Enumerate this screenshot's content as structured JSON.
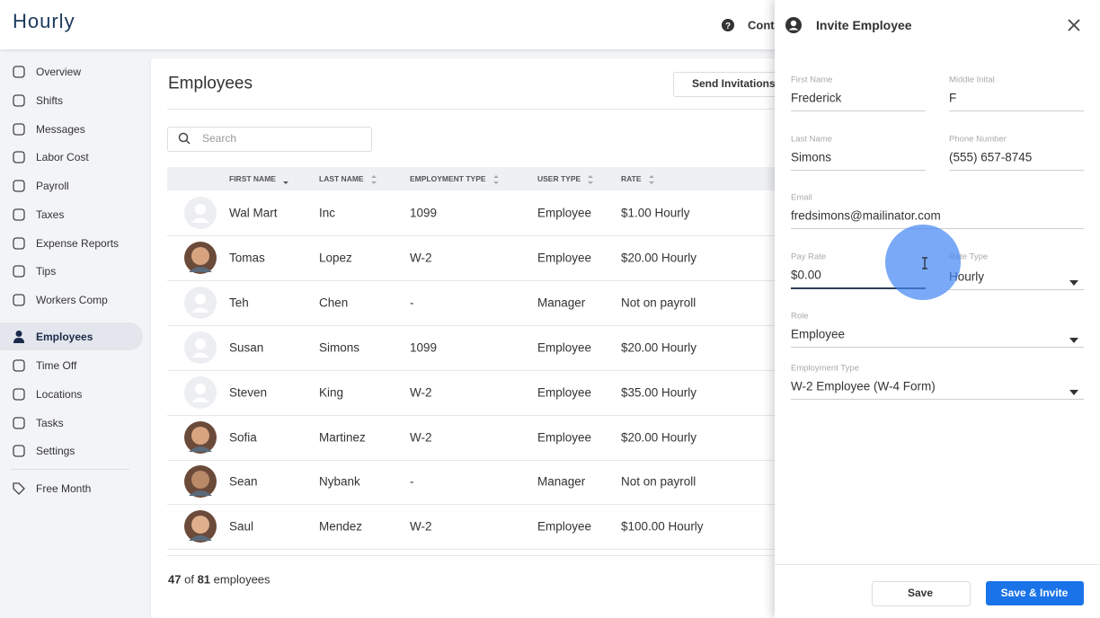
{
  "header": {
    "logo": "Hourly",
    "contact": "Conta"
  },
  "sidebar": {
    "active_index": 9,
    "items": [
      "Overview",
      "Shifts",
      "Messages",
      "Labor Cost",
      "Payroll",
      "Taxes",
      "Expense Reports",
      "Tips",
      "Workers Comp",
      "Employees",
      "Time Off",
      "Locations",
      "Tasks",
      "Settings"
    ],
    "extra": "Free Month"
  },
  "employees": {
    "title": "Employees",
    "send_button": "Send Invitations",
    "search_placeholder": "Search",
    "sorted_index": 0,
    "columns": [
      "FIRST NAME",
      "LAST NAME",
      "EMPLOYMENT TYPE",
      "USER TYPE",
      "RATE"
    ],
    "rows": [
      {
        "avatar": "default",
        "cells": [
          "Wal Mart",
          "Inc",
          "1099",
          "Employee",
          "$1.00 Hourly"
        ]
      },
      {
        "avatar": "photo",
        "cells": [
          "Tomas",
          "Lopez",
          "W-2",
          "Employee",
          "$20.00 Hourly"
        ]
      },
      {
        "avatar": "default",
        "cells": [
          "Teh",
          "Chen",
          "-",
          "Manager",
          "Not on payroll"
        ]
      },
      {
        "avatar": "default",
        "cells": [
          "Susan",
          "Simons",
          "1099",
          "Employee",
          "$20.00 Hourly"
        ]
      },
      {
        "avatar": "default",
        "cells": [
          "Steven",
          "King",
          "W-2",
          "Employee",
          "$35.00 Hourly"
        ]
      },
      {
        "avatar": "photo",
        "cells": [
          "Sofia",
          "Martinez",
          "W-2",
          "Employee",
          "$20.00 Hourly"
        ]
      },
      {
        "avatar": "photo",
        "cells": [
          "Sean",
          "Nybank",
          "-",
          "Manager",
          "Not on payroll"
        ]
      },
      {
        "avatar": "photo",
        "cells": [
          "Saul",
          "Mendez",
          "W-2",
          "Employee",
          "$100.00 Hourly"
        ]
      }
    ],
    "footer": {
      "shown": 47,
      "of": "of",
      "total": 81,
      "unit": "employees"
    }
  },
  "panel": {
    "title": "Invite Employee",
    "fields": [
      {
        "label": "First Name",
        "value": "Frederick"
      },
      {
        "label": "Middle Inital",
        "value": "F"
      },
      {
        "label": "Last Name",
        "value": "Simons"
      },
      {
        "label": "Phone Number",
        "value": "(555) 657-8745"
      },
      {
        "label": "Email",
        "value": "fredsimons@mailinator.com"
      },
      {
        "label": "Pay Rate",
        "value": "$0.00"
      },
      {
        "label": "Rate Type",
        "value": "Hourly"
      },
      {
        "label": "Role",
        "value": "Employee"
      },
      {
        "label": "Employment Type",
        "value": "W-2 Employee (W-4 Form)"
      }
    ],
    "save": "Save",
    "save_invite": "Save & Invite"
  }
}
